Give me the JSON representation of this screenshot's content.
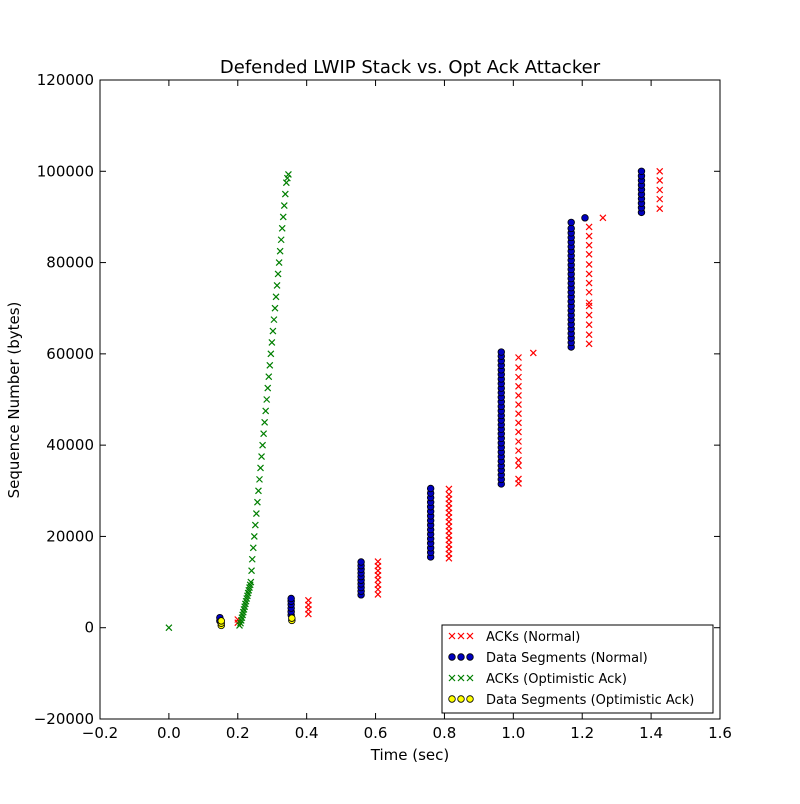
{
  "chart_data": {
    "type": "scatter",
    "title": "Defended LWIP Stack vs. Opt Ack Attacker",
    "xlabel": "Time (sec)",
    "ylabel": "Sequence Number (bytes)",
    "xlim": [
      -0.2,
      1.6
    ],
    "ylim": [
      -20000,
      120000
    ],
    "xticks": [
      -0.2,
      0.0,
      0.2,
      0.4,
      0.6,
      0.8,
      1.0,
      1.2,
      1.4,
      1.6
    ],
    "xtick_labels": [
      "−0.2",
      "0.0",
      "0.2",
      "0.4",
      "0.6",
      "0.8",
      "1.0",
      "1.2",
      "1.4",
      "1.6"
    ],
    "yticks": [
      -20000,
      0,
      20000,
      40000,
      60000,
      80000,
      100000,
      120000
    ],
    "ytick_labels": [
      "−20000",
      "0",
      "20000",
      "40000",
      "60000",
      "80000",
      "100000",
      "120000"
    ],
    "grid": false,
    "legend_position": "lower-right",
    "series": [
      {
        "name": "ACKs (Normal)",
        "marker": "x",
        "color": "#ff0000",
        "points": [
          [
            0.2,
            1100
          ],
          [
            0.2,
            1800
          ],
          [
            0.405,
            3000
          ],
          [
            0.405,
            4000
          ],
          [
            0.405,
            5000
          ],
          [
            0.405,
            6000
          ],
          [
            0.607,
            7300
          ],
          [
            0.607,
            8400
          ],
          [
            0.607,
            9400
          ],
          [
            0.607,
            10500
          ],
          [
            0.607,
            11500
          ],
          [
            0.607,
            12500
          ],
          [
            0.607,
            13500
          ],
          [
            0.607,
            14500
          ],
          [
            0.813,
            15200
          ],
          [
            0.813,
            16200
          ],
          [
            0.813,
            17200
          ],
          [
            0.813,
            18200
          ],
          [
            0.813,
            19200
          ],
          [
            0.813,
            20200
          ],
          [
            0.813,
            21200
          ],
          [
            0.813,
            22200
          ],
          [
            0.813,
            23200
          ],
          [
            0.813,
            24200
          ],
          [
            0.813,
            25200
          ],
          [
            0.813,
            26200
          ],
          [
            0.813,
            27200
          ],
          [
            0.813,
            28200
          ],
          [
            0.813,
            29200
          ],
          [
            0.813,
            30400
          ],
          [
            1.015,
            31600
          ],
          [
            1.015,
            32600
          ],
          [
            1.015,
            35500
          ],
          [
            1.015,
            36700
          ],
          [
            1.015,
            38800
          ],
          [
            1.015,
            40800
          ],
          [
            1.015,
            42900
          ],
          [
            1.015,
            44900
          ],
          [
            1.015,
            46900
          ],
          [
            1.015,
            48900
          ],
          [
            1.015,
            50900
          ],
          [
            1.015,
            52900
          ],
          [
            1.015,
            54900
          ],
          [
            1.015,
            57000
          ],
          [
            1.015,
            59200
          ],
          [
            1.058,
            60200
          ],
          [
            1.22,
            62200
          ],
          [
            1.22,
            64200
          ],
          [
            1.22,
            66400
          ],
          [
            1.22,
            68500
          ],
          [
            1.22,
            70500
          ],
          [
            1.22,
            71200
          ],
          [
            1.22,
            73500
          ],
          [
            1.22,
            75500
          ],
          [
            1.22,
            77500
          ],
          [
            1.22,
            79600
          ],
          [
            1.22,
            81800
          ],
          [
            1.22,
            83800
          ],
          [
            1.22,
            85800
          ],
          [
            1.22,
            87800
          ],
          [
            1.26,
            89800
          ],
          [
            1.425,
            91800
          ],
          [
            1.425,
            93900
          ],
          [
            1.425,
            95900
          ],
          [
            1.425,
            98000
          ],
          [
            1.425,
            100000
          ]
        ]
      },
      {
        "name": "Data Segments (Normal)",
        "marker": "o",
        "color": "#0000bf",
        "points": [
          [
            0.148,
            1500
          ],
          [
            0.148,
            2200
          ],
          [
            0.355,
            2800
          ],
          [
            0.355,
            3500
          ],
          [
            0.355,
            4300
          ],
          [
            0.355,
            5100
          ],
          [
            0.355,
            5800
          ],
          [
            0.355,
            6400
          ],
          [
            0.558,
            7200
          ],
          [
            0.558,
            8000
          ],
          [
            0.558,
            8800
          ],
          [
            0.558,
            9600
          ],
          [
            0.558,
            10400
          ],
          [
            0.558,
            11200
          ],
          [
            0.558,
            12000
          ],
          [
            0.558,
            12800
          ],
          [
            0.558,
            13600
          ],
          [
            0.558,
            14400
          ],
          [
            0.76,
            15500
          ],
          [
            0.76,
            16500
          ],
          [
            0.76,
            17500
          ],
          [
            0.76,
            18500
          ],
          [
            0.76,
            19500
          ],
          [
            0.76,
            20500
          ],
          [
            0.76,
            21500
          ],
          [
            0.76,
            22500
          ],
          [
            0.76,
            23500
          ],
          [
            0.76,
            24500
          ],
          [
            0.76,
            25500
          ],
          [
            0.76,
            26500
          ],
          [
            0.76,
            27500
          ],
          [
            0.76,
            28500
          ],
          [
            0.76,
            29500
          ],
          [
            0.76,
            30500
          ],
          [
            0.965,
            31500
          ],
          [
            0.965,
            32500
          ],
          [
            0.965,
            33500
          ],
          [
            0.965,
            34500
          ],
          [
            0.965,
            35500
          ],
          [
            0.965,
            36500
          ],
          [
            0.965,
            37500
          ],
          [
            0.965,
            38500
          ],
          [
            0.965,
            39500
          ],
          [
            0.965,
            40500
          ],
          [
            0.965,
            41500
          ],
          [
            0.965,
            42500
          ],
          [
            0.965,
            43500
          ],
          [
            0.965,
            44500
          ],
          [
            0.965,
            45500
          ],
          [
            0.965,
            46500
          ],
          [
            0.965,
            47500
          ],
          [
            0.965,
            48500
          ],
          [
            0.965,
            49500
          ],
          [
            0.965,
            50500
          ],
          [
            0.965,
            51500
          ],
          [
            0.965,
            52500
          ],
          [
            0.965,
            53500
          ],
          [
            0.965,
            54500
          ],
          [
            0.965,
            55500
          ],
          [
            0.965,
            56500
          ],
          [
            0.965,
            57500
          ],
          [
            0.965,
            58500
          ],
          [
            0.965,
            59500
          ],
          [
            0.965,
            60400
          ],
          [
            1.168,
            61500
          ],
          [
            1.168,
            62500
          ],
          [
            1.168,
            63500
          ],
          [
            1.168,
            64500
          ],
          [
            1.168,
            65500
          ],
          [
            1.168,
            66500
          ],
          [
            1.168,
            67500
          ],
          [
            1.168,
            68500
          ],
          [
            1.168,
            69500
          ],
          [
            1.168,
            70500
          ],
          [
            1.168,
            71500
          ],
          [
            1.168,
            72500
          ],
          [
            1.168,
            73500
          ],
          [
            1.168,
            74500
          ],
          [
            1.168,
            75500
          ],
          [
            1.168,
            76500
          ],
          [
            1.168,
            77500
          ],
          [
            1.168,
            78500
          ],
          [
            1.168,
            79500
          ],
          [
            1.168,
            80500
          ],
          [
            1.168,
            81500
          ],
          [
            1.168,
            82500
          ],
          [
            1.168,
            83500
          ],
          [
            1.168,
            84500
          ],
          [
            1.168,
            85500
          ],
          [
            1.168,
            86500
          ],
          [
            1.168,
            87500
          ],
          [
            1.168,
            88800
          ],
          [
            1.208,
            89800
          ],
          [
            1.372,
            91000
          ],
          [
            1.372,
            92000
          ],
          [
            1.372,
            93000
          ],
          [
            1.372,
            94000
          ],
          [
            1.372,
            95000
          ],
          [
            1.372,
            96000
          ],
          [
            1.372,
            97000
          ],
          [
            1.372,
            98000
          ],
          [
            1.372,
            99000
          ],
          [
            1.372,
            100000
          ]
        ]
      },
      {
        "name": "ACKs (Optimistic Ack)",
        "marker": "x",
        "color": "#007f00",
        "points": [
          [
            0.0,
            0
          ],
          [
            0.205,
            500
          ],
          [
            0.208,
            1000
          ],
          [
            0.21,
            1600
          ],
          [
            0.212,
            2200
          ],
          [
            0.214,
            2800
          ],
          [
            0.216,
            3400
          ],
          [
            0.218,
            4000
          ],
          [
            0.22,
            4600
          ],
          [
            0.222,
            5200
          ],
          [
            0.224,
            5800
          ],
          [
            0.226,
            6400
          ],
          [
            0.228,
            7000
          ],
          [
            0.23,
            7600
          ],
          [
            0.232,
            8200
          ],
          [
            0.234,
            8800
          ],
          [
            0.236,
            9400
          ],
          [
            0.238,
            10000
          ],
          [
            0.24,
            12500
          ],
          [
            0.242,
            15000
          ],
          [
            0.245,
            17500
          ],
          [
            0.248,
            20000
          ],
          [
            0.251,
            22500
          ],
          [
            0.254,
            25000
          ],
          [
            0.257,
            27500
          ],
          [
            0.26,
            30000
          ],
          [
            0.263,
            32500
          ],
          [
            0.266,
            35000
          ],
          [
            0.269,
            37500
          ],
          [
            0.272,
            40000
          ],
          [
            0.275,
            42500
          ],
          [
            0.278,
            45000
          ],
          [
            0.281,
            47500
          ],
          [
            0.284,
            50000
          ],
          [
            0.287,
            52500
          ],
          [
            0.29,
            55000
          ],
          [
            0.293,
            57500
          ],
          [
            0.296,
            60000
          ],
          [
            0.299,
            62500
          ],
          [
            0.302,
            65000
          ],
          [
            0.305,
            67500
          ],
          [
            0.308,
            70000
          ],
          [
            0.311,
            72500
          ],
          [
            0.314,
            75000
          ],
          [
            0.317,
            77500
          ],
          [
            0.32,
            80000
          ],
          [
            0.323,
            82500
          ],
          [
            0.326,
            85000
          ],
          [
            0.329,
            87500
          ],
          [
            0.332,
            90000
          ],
          [
            0.335,
            92500
          ],
          [
            0.338,
            95000
          ],
          [
            0.341,
            97500
          ],
          [
            0.344,
            98500
          ],
          [
            0.347,
            99300
          ]
        ]
      },
      {
        "name": "Data Segments (Optimistic Ack)",
        "marker": "o",
        "color": "#ffff00",
        "points": [
          [
            0.152,
            500
          ],
          [
            0.152,
            1000
          ],
          [
            0.152,
            1500
          ],
          [
            0.357,
            1600
          ],
          [
            0.357,
            2100
          ]
        ]
      }
    ]
  }
}
